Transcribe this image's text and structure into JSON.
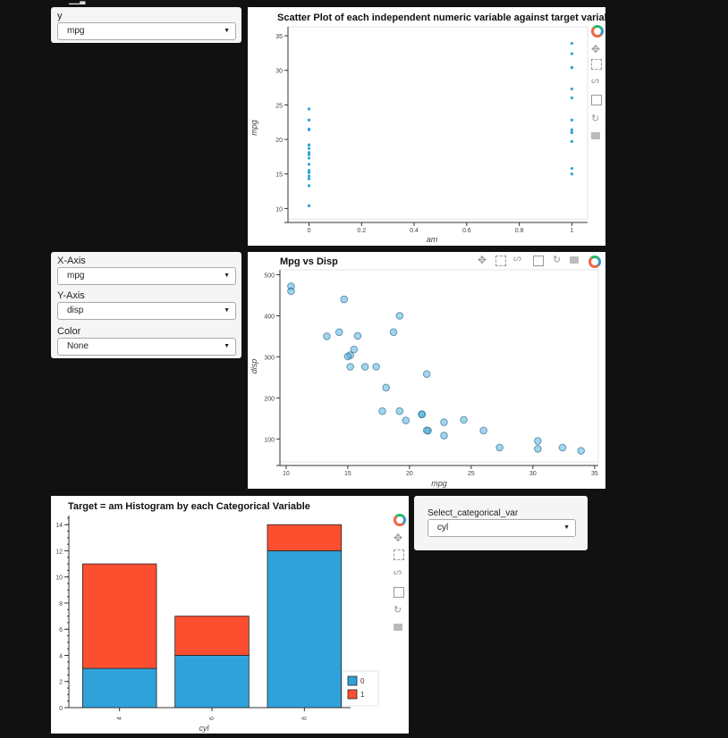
{
  "top_marker": "▁▁▃",
  "widgets": {
    "y_select": {
      "label": "y",
      "value": "mpg"
    },
    "axis_selects": [
      {
        "label": "X-Axis",
        "value": "mpg"
      },
      {
        "label": "Y-Axis",
        "value": "disp"
      },
      {
        "label": "Color",
        "value": "None"
      }
    ],
    "cat_select": {
      "label": "Select_categorical_var",
      "value": "cyl"
    }
  },
  "chart_data": [
    {
      "type": "scatter",
      "title": "Scatter Plot of each independent numeric variable against target variable",
      "xlabel": "am",
      "ylabel": "mpg",
      "xlim": [
        -0.08,
        1.06
      ],
      "ylim": [
        8.5,
        36.3
      ],
      "xticks": [
        0,
        0.2,
        0.4,
        0.6,
        0.8,
        1
      ],
      "yticks": [
        10,
        15,
        20,
        25,
        30,
        35
      ],
      "color": "#30a2da",
      "x": [
        0,
        0,
        0,
        0,
        0,
        0,
        0,
        0,
        0,
        0,
        0,
        0,
        0,
        0,
        0,
        0,
        0,
        0,
        0,
        1,
        1,
        1,
        1,
        1,
        1,
        1,
        1,
        1,
        1,
        1,
        1,
        1
      ],
      "y": [
        21.4,
        18.7,
        18.1,
        14.3,
        24.4,
        22.8,
        19.2,
        17.8,
        16.4,
        17.3,
        15.2,
        10.4,
        10.4,
        14.7,
        21.5,
        15.5,
        15.2,
        13.3,
        19.2,
        21.0,
        21.0,
        22.8,
        32.4,
        30.4,
        33.9,
        27.3,
        26.0,
        30.4,
        15.8,
        19.7,
        15.0,
        21.4
      ]
    },
    {
      "type": "scatter",
      "title": "Mpg vs Disp",
      "xlabel": "mpg",
      "ylabel": "disp",
      "xlim": [
        9.5,
        35.3
      ],
      "ylim": [
        44,
        512
      ],
      "xticks": [
        10,
        15,
        20,
        25,
        30,
        35
      ],
      "yticks": [
        100,
        200,
        300,
        400,
        500
      ],
      "color": "#30a2da",
      "x": [
        21.0,
        21.0,
        22.8,
        21.4,
        18.7,
        18.1,
        14.3,
        24.4,
        22.8,
        19.2,
        17.8,
        16.4,
        17.3,
        15.2,
        10.4,
        10.4,
        14.7,
        32.4,
        30.4,
        33.9,
        21.5,
        15.5,
        15.2,
        13.3,
        19.2,
        27.3,
        26.0,
        30.4,
        15.8,
        19.7,
        15.0,
        21.4
      ],
      "y": [
        160,
        160,
        108,
        258,
        360,
        225,
        360,
        146.7,
        140.8,
        167.6,
        167.6,
        275.8,
        275.8,
        275.8,
        472,
        460,
        440,
        78.7,
        75.7,
        71.1,
        120.1,
        318,
        304,
        350,
        400,
        79,
        120.3,
        95.1,
        351,
        145,
        301,
        121
      ]
    },
    {
      "type": "bar",
      "stacked": true,
      "title": "Target = am Histogram by each Categorical Variable",
      "xlabel": "cyl",
      "ylabel": "",
      "categories": [
        "4",
        "6",
        "8"
      ],
      "ylim": [
        0,
        14.7
      ],
      "yticks": [
        0,
        2,
        4,
        6,
        8,
        10,
        12,
        14
      ],
      "series": [
        {
          "name": "0",
          "values": [
            3,
            4,
            12
          ],
          "color": "#30a2da"
        },
        {
          "name": "1",
          "values": [
            8,
            3,
            2
          ],
          "color": "#fc4f30"
        }
      ],
      "legend": "bottom-right"
    }
  ]
}
